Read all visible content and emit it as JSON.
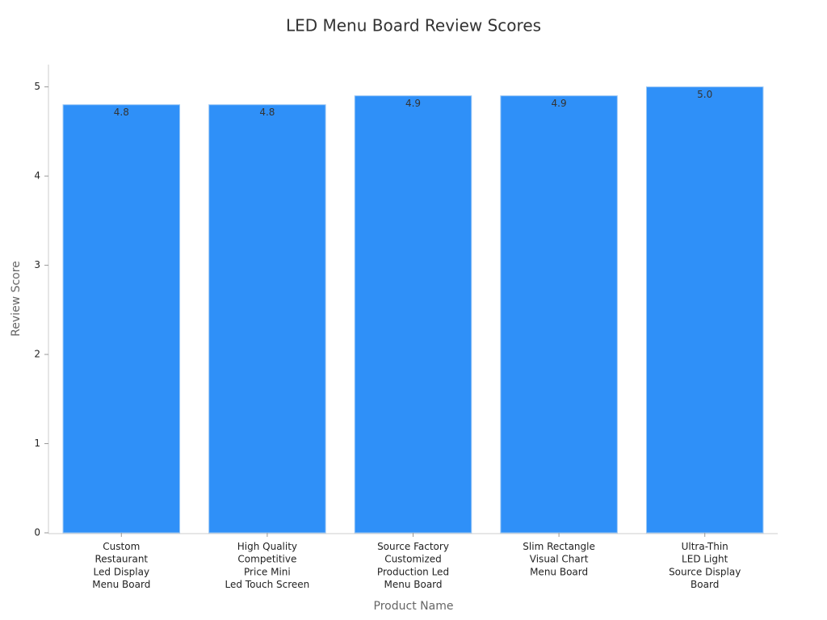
{
  "chart_data": {
    "type": "bar",
    "title": "LED Menu Board Review Scores",
    "x_label": "Product Name",
    "y_label": "Review Score",
    "categories": [
      "Custom\nRestaurant\nLed Display\nMenu Board",
      "High Quality\nCompetitive\nPrice Mini\nLed Touch Screen",
      "Source Factory\nCustomized\nProduction Led\nMenu Board",
      "Slim Rectangle\nVisual Chart\nMenu Board",
      "Ultra-Thin\nLED Light\nSource Display\nBoard"
    ],
    "values": [
      4.8,
      4.8,
      4.9,
      4.9,
      5.0
    ],
    "value_labels": [
      "4.8",
      "4.8",
      "4.9",
      "4.9",
      "5.0"
    ],
    "color": "#2f90f8",
    "ylim": [
      0,
      5.25
    ],
    "yticks": [
      0,
      1,
      2,
      3,
      4,
      5
    ],
    "grid": false
  }
}
